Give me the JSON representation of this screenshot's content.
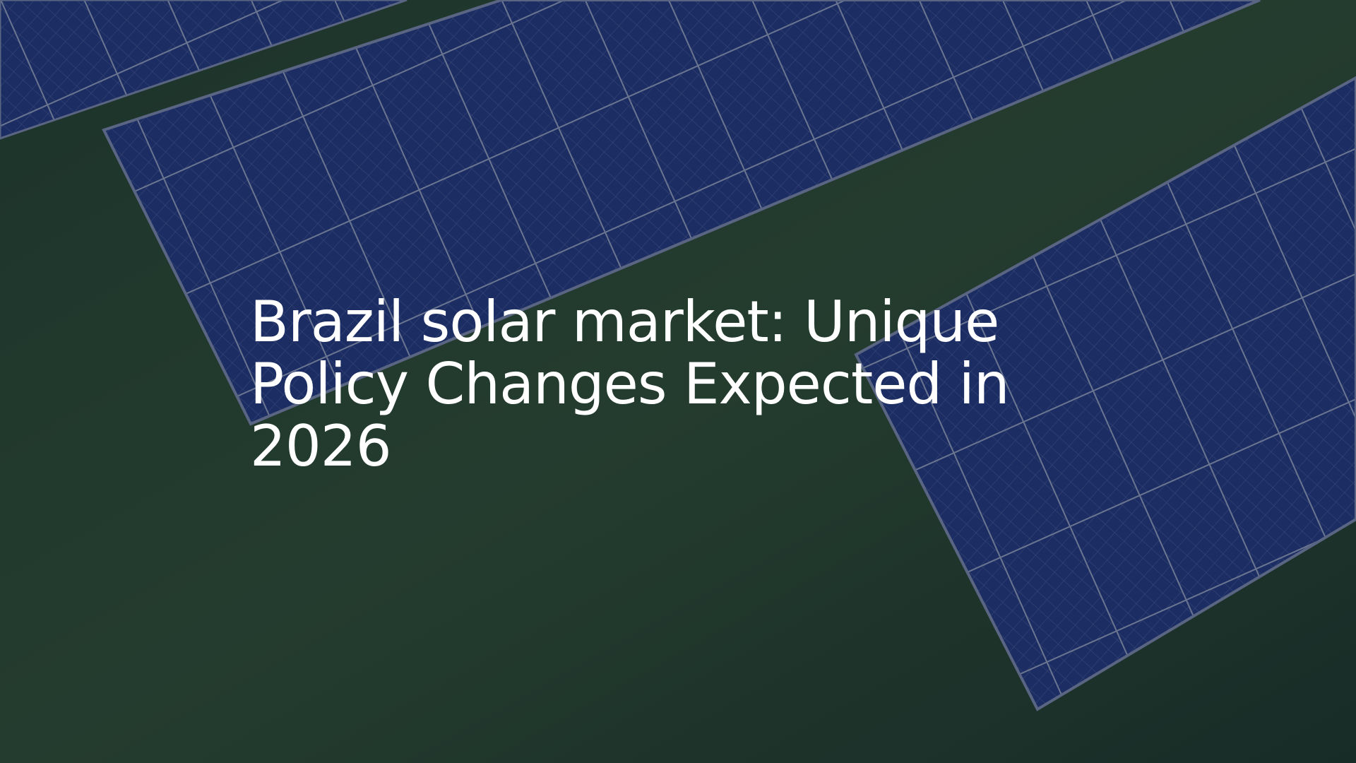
{
  "title": "Brazil solar market: Unique Policy Changes Expected in 2026"
}
